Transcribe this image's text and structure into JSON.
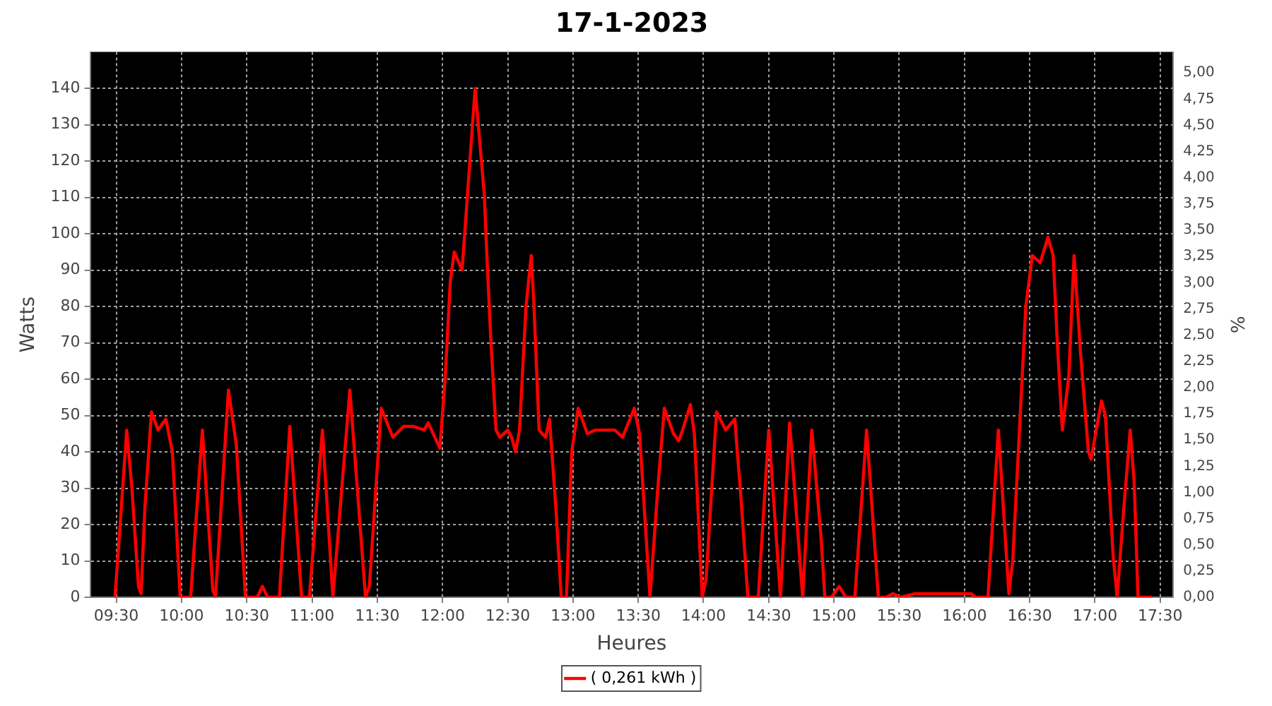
{
  "chart_data": {
    "type": "line",
    "title": "17-1-2023",
    "xlabel": "Heures",
    "ylabel": "Watts",
    "y2label": "%",
    "series": [
      {
        "name": "( 0,261 kWh )",
        "color": "#ff0000",
        "x": [
          9.49,
          9.52,
          9.58,
          9.62,
          9.67,
          9.69,
          9.72,
          9.77,
          9.82,
          9.88,
          9.93,
          9.99,
          10.07,
          10.16,
          10.24,
          10.26,
          10.36,
          10.42,
          10.49,
          10.58,
          10.62,
          10.66,
          10.75,
          10.83,
          10.92,
          10.98,
          11.08,
          11.16,
          11.29,
          11.41,
          11.44,
          11.53,
          11.62,
          11.7,
          11.78,
          11.86,
          11.89,
          11.98,
          12.02,
          12.06,
          12.09,
          12.15,
          12.2,
          12.25,
          12.32,
          12.34,
          12.37,
          12.41,
          12.44,
          12.5,
          12.53,
          12.56,
          12.59,
          12.64,
          12.68,
          12.7,
          12.74,
          12.79,
          12.82,
          12.87,
          12.91,
          12.95,
          12.99,
          13.04,
          13.11,
          13.17,
          13.32,
          13.38,
          13.47,
          13.51,
          13.59,
          13.65,
          13.7,
          13.77,
          13.81,
          13.84,
          13.9,
          13.93,
          13.99,
          14.02,
          14.1,
          14.17,
          14.24,
          14.29,
          14.34,
          14.42,
          14.5,
          14.59,
          14.66,
          14.76,
          14.83,
          14.9,
          14.93,
          14.98,
          15.04,
          15.09,
          15.16,
          15.25,
          15.34,
          15.4,
          15.45,
          15.51,
          15.62,
          15.88,
          16.05,
          16.09,
          16.18,
          16.26,
          16.34,
          16.37,
          16.47,
          16.52,
          16.58,
          16.64,
          16.68,
          16.71,
          16.75,
          16.8,
          16.84,
          16.89,
          16.95,
          16.97,
          17.05,
          17.08,
          17.14,
          17.17,
          17.22,
          17.27,
          17.3,
          17.33,
          17.43
        ],
        "values": [
          0,
          15,
          46,
          30,
          3,
          1,
          25,
          51,
          46,
          49,
          40,
          0,
          0,
          46,
          2,
          0,
          57,
          42,
          0,
          0,
          3,
          0,
          0,
          47,
          0,
          0,
          46,
          0,
          57,
          0,
          3,
          52,
          44,
          47,
          47,
          46,
          48,
          41,
          60,
          87,
          95,
          90,
          115,
          140,
          111,
          94,
          71,
          46,
          44,
          46,
          44,
          40,
          46,
          80,
          94,
          81,
          46,
          44,
          49,
          24,
          0,
          0,
          40,
          52,
          45,
          46,
          46,
          44,
          52,
          45,
          0,
          30,
          52,
          45,
          43,
          46,
          53,
          45,
          0,
          5,
          51,
          46,
          49,
          26,
          0,
          0,
          46,
          0,
          48,
          0,
          46,
          17,
          0,
          0,
          3,
          0,
          0,
          46,
          0,
          0,
          1,
          0,
          1,
          1,
          1,
          0,
          0,
          46,
          1,
          10,
          80,
          94,
          92,
          99,
          94,
          71,
          46,
          61,
          94,
          67,
          40,
          38,
          54,
          50,
          11,
          0,
          24,
          46,
          32,
          0,
          0
        ]
      }
    ],
    "xlim": [
      9.3,
      17.6
    ],
    "xticks": [
      {
        "value": 9.5,
        "label": "09:30"
      },
      {
        "value": 10,
        "label": "10:00"
      },
      {
        "value": 10.5,
        "label": "10:30"
      },
      {
        "value": 11,
        "label": "11:00"
      },
      {
        "value": 11.5,
        "label": "11:30"
      },
      {
        "value": 12,
        "label": "12:00"
      },
      {
        "value": 12.5,
        "label": "12:30"
      },
      {
        "value": 13,
        "label": "13:00"
      },
      {
        "value": 13.5,
        "label": "13:30"
      },
      {
        "value": 14,
        "label": "14:00"
      },
      {
        "value": 14.5,
        "label": "14:30"
      },
      {
        "value": 15,
        "label": "15:00"
      },
      {
        "value": 15.5,
        "label": "15:30"
      },
      {
        "value": 16,
        "label": "16:00"
      },
      {
        "value": 16.5,
        "label": "16:30"
      },
      {
        "value": 17,
        "label": "17:00"
      },
      {
        "value": 17.5,
        "label": "17:30"
      }
    ],
    "ylim": [
      0,
      150
    ],
    "yticks": [
      0,
      10,
      20,
      30,
      40,
      50,
      60,
      70,
      80,
      90,
      100,
      110,
      120,
      130,
      140
    ],
    "y2lim": [
      0,
      5.2
    ],
    "y2ticks": [
      {
        "value": 0,
        "label": "0,00"
      },
      {
        "value": 0.25,
        "label": "0,25"
      },
      {
        "value": 0.5,
        "label": "0,50"
      },
      {
        "value": 0.75,
        "label": "0,75"
      },
      {
        "value": 1,
        "label": "1,00"
      },
      {
        "value": 1.25,
        "label": "1,25"
      },
      {
        "value": 1.5,
        "label": "1,50"
      },
      {
        "value": 1.75,
        "label": "1,75"
      },
      {
        "value": 2,
        "label": "2,00"
      },
      {
        "value": 2.25,
        "label": "2,25"
      },
      {
        "value": 2.5,
        "label": "2,50"
      },
      {
        "value": 2.75,
        "label": "2,75"
      },
      {
        "value": 3,
        "label": "3,00"
      },
      {
        "value": 3.25,
        "label": "3,25"
      },
      {
        "value": 3.5,
        "label": "3,50"
      },
      {
        "value": 3.75,
        "label": "3,75"
      },
      {
        "value": 4,
        "label": "4,00"
      },
      {
        "value": 4.25,
        "label": "4,25"
      },
      {
        "value": 4.5,
        "label": "4,50"
      },
      {
        "value": 4.75,
        "label": "4,75"
      },
      {
        "value": 5,
        "label": "5,00"
      }
    ],
    "grid": true,
    "legend": "bottom",
    "marker": "none",
    "line_style": "solid"
  }
}
